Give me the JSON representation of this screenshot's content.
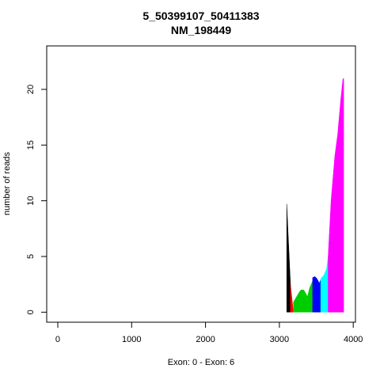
{
  "chart_data": {
    "type": "area",
    "title_line1": "5_50399107_50411383",
    "title_line2": "NM_198449",
    "xlabel": "Exon: 0 - Exon: 6",
    "ylabel": "number of reads",
    "xlim": [
      -150,
      4030
    ],
    "ylim": [
      -0.9,
      23.9
    ],
    "xticks": [
      0,
      1000,
      2000,
      3000,
      4000
    ],
    "yticks": [
      0,
      5,
      10,
      15,
      20
    ],
    "exons": [
      {
        "exon": 0,
        "color": "#000000",
        "points": [
          [
            3100,
            0
          ],
          [
            3100,
            9.7
          ],
          [
            3150,
            2.5
          ],
          [
            3150,
            0
          ]
        ]
      },
      {
        "exon": 1,
        "color": "#ff0000",
        "points": [
          [
            3150,
            0
          ],
          [
            3150,
            2.5
          ],
          [
            3190,
            0
          ]
        ]
      },
      {
        "exon": 2,
        "color": "#00cd00",
        "points": [
          [
            3190,
            0
          ],
          [
            3190,
            0.9
          ],
          [
            3260,
            1.7
          ],
          [
            3290,
            2.0
          ],
          [
            3330,
            2.0
          ],
          [
            3380,
            1.4
          ],
          [
            3410,
            2.2
          ],
          [
            3450,
            2.8
          ],
          [
            3450,
            0
          ]
        ]
      },
      {
        "exon": 3,
        "color": "#0000ff",
        "points": [
          [
            3450,
            0
          ],
          [
            3450,
            3.1
          ],
          [
            3480,
            3.2
          ],
          [
            3510,
            3.0
          ],
          [
            3540,
            2.6
          ],
          [
            3560,
            2.9
          ],
          [
            3560,
            0
          ]
        ]
      },
      {
        "exon": 4,
        "color": "#00ffff",
        "points": [
          [
            3560,
            0
          ],
          [
            3560,
            3.0
          ],
          [
            3600,
            3.3
          ],
          [
            3640,
            3.9
          ],
          [
            3660,
            5.0
          ],
          [
            3660,
            0
          ]
        ]
      },
      {
        "exon": 5,
        "color": "#ff00ff",
        "points": [
          [
            3660,
            0
          ],
          [
            3660,
            5.0
          ],
          [
            3700,
            10.0
          ],
          [
            3750,
            14.0
          ],
          [
            3790,
            16.0
          ],
          [
            3830,
            19.0
          ],
          [
            3860,
            20.9
          ],
          [
            3870,
            21.0
          ],
          [
            3870,
            0
          ]
        ]
      }
    ]
  }
}
